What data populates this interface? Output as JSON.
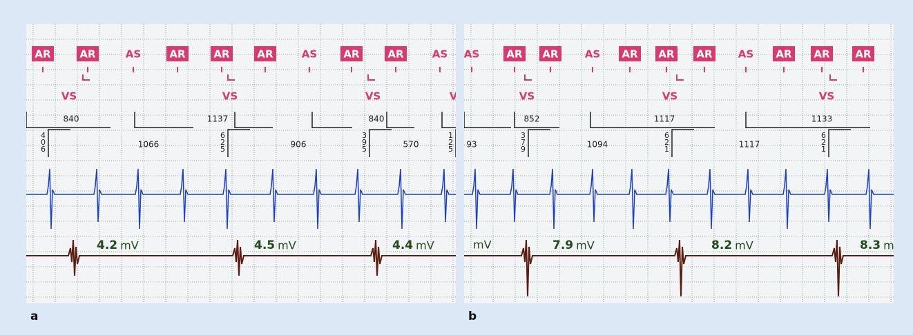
{
  "panels": [
    {
      "label": "a",
      "markers": [
        "AR",
        "AR",
        "AS",
        "AR",
        "AR",
        "AR",
        "AS",
        "AR",
        "AR",
        "AS"
      ],
      "ventricular_markers": [
        "VS",
        "VS",
        "VS",
        "VS"
      ],
      "intervals_top": [
        "840",
        "1137",
        "840"
      ],
      "intervals_bottom": [
        "1066",
        "906",
        "570"
      ],
      "intervals_vertical": [
        "406",
        "625",
        "395",
        "125"
      ],
      "amplitudes": [
        {
          "value": "4.2",
          "unit": "mV"
        },
        {
          "value": "4.5",
          "unit": "mV"
        },
        {
          "value": "4.4",
          "unit": "mV"
        }
      ]
    },
    {
      "label": "b",
      "markers": [
        "AS",
        "AR",
        "AR",
        "AS",
        "AR",
        "AR",
        "AR",
        "AS",
        "AR",
        "AR",
        "AR"
      ],
      "ventricular_markers": [
        "VS",
        "VS",
        "VS"
      ],
      "intervals_top": [
        "852",
        "1117",
        "1133"
      ],
      "intervals_bottom": [
        "93",
        "1094",
        "1117"
      ],
      "intervals_vertical": [
        "379",
        "621",
        "621"
      ],
      "leading_unit": "mV",
      "amplitudes": [
        {
          "value": "7.9",
          "unit": "mV"
        },
        {
          "value": "8.2",
          "unit": "mV"
        },
        {
          "value": "8.3",
          "unit": "mV"
        }
      ]
    }
  ]
}
